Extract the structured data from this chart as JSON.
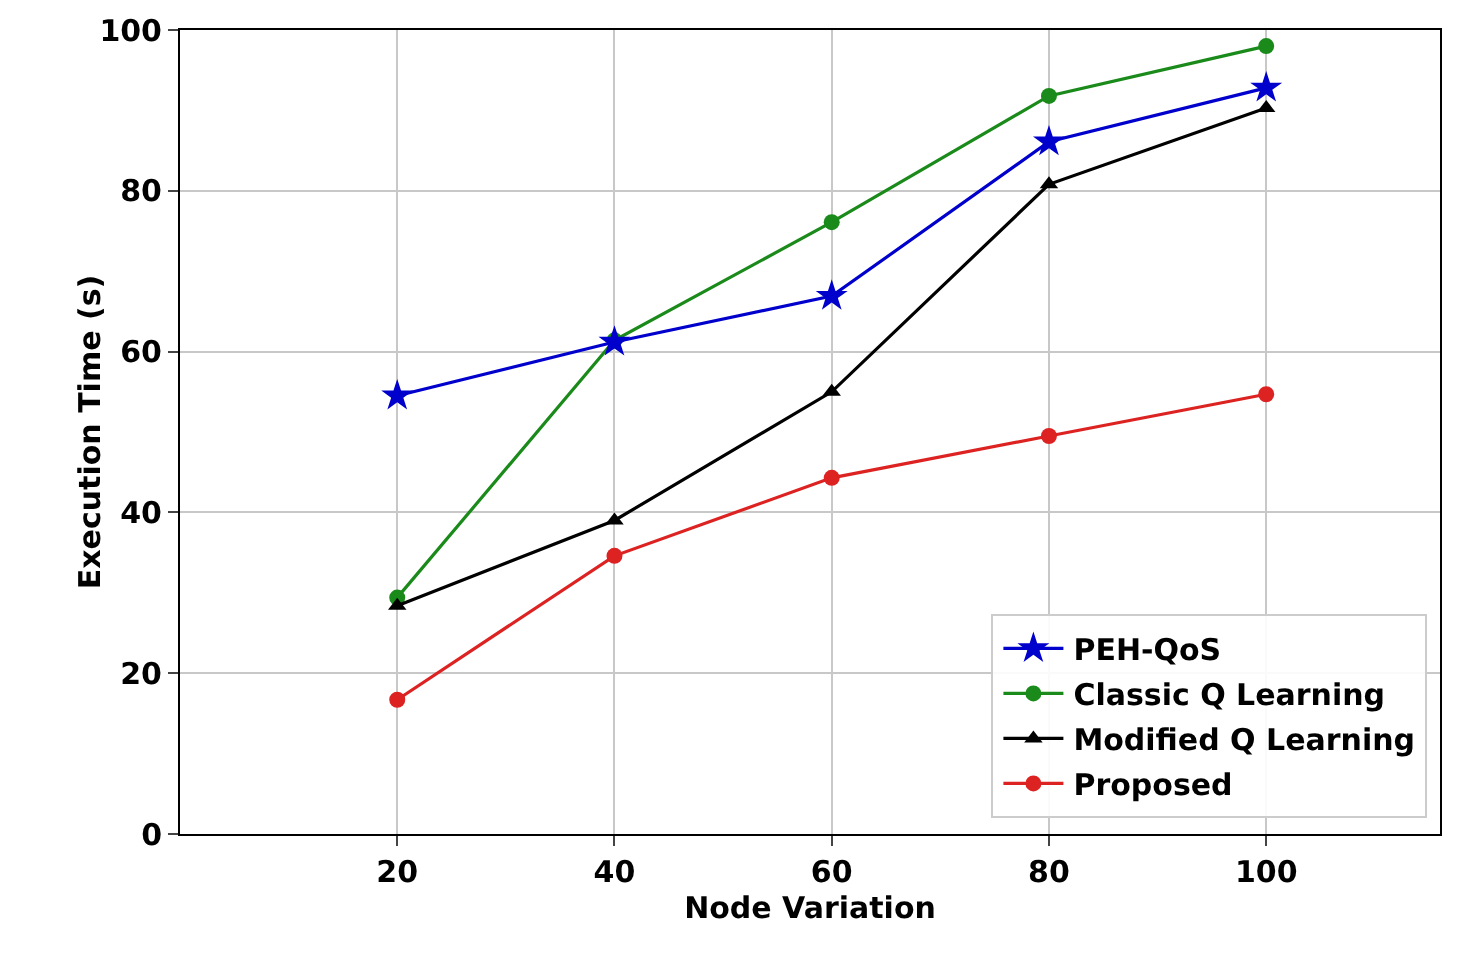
{
  "chart_data": {
    "type": "line",
    "xlabel": "Node Variation",
    "ylabel": "Execution Time (s)",
    "x": [
      20,
      40,
      60,
      80,
      100
    ],
    "series": [
      {
        "name": "PEH-QoS",
        "color": "#0000cc",
        "marker": "star",
        "values": [
          54.5,
          61.2,
          66.9,
          86.1,
          92.8
        ]
      },
      {
        "name": "Classic Q Learning",
        "color": "#1a8a1a",
        "marker": "circle",
        "values": [
          29.4,
          61.4,
          76.1,
          91.8,
          98
        ]
      },
      {
        "name": "Modified Q Learning",
        "color": "#000000",
        "marker": "triangle",
        "values": [
          28.4,
          39,
          55,
          80.8,
          90.3
        ]
      },
      {
        "name": "Proposed",
        "color": "#dd2222",
        "marker": "circle",
        "values": [
          16.7,
          34.6,
          44.3,
          49.5,
          54.7
        ]
      }
    ],
    "xlim": [
      0,
      116
    ],
    "xticks": [
      20,
      40,
      60,
      80,
      100
    ],
    "ylim": [
      0,
      100
    ],
    "yticks": [
      0,
      20,
      40,
      60,
      80,
      100
    ],
    "grid": true,
    "legend": "bottom right",
    "line_style": "solid"
  }
}
